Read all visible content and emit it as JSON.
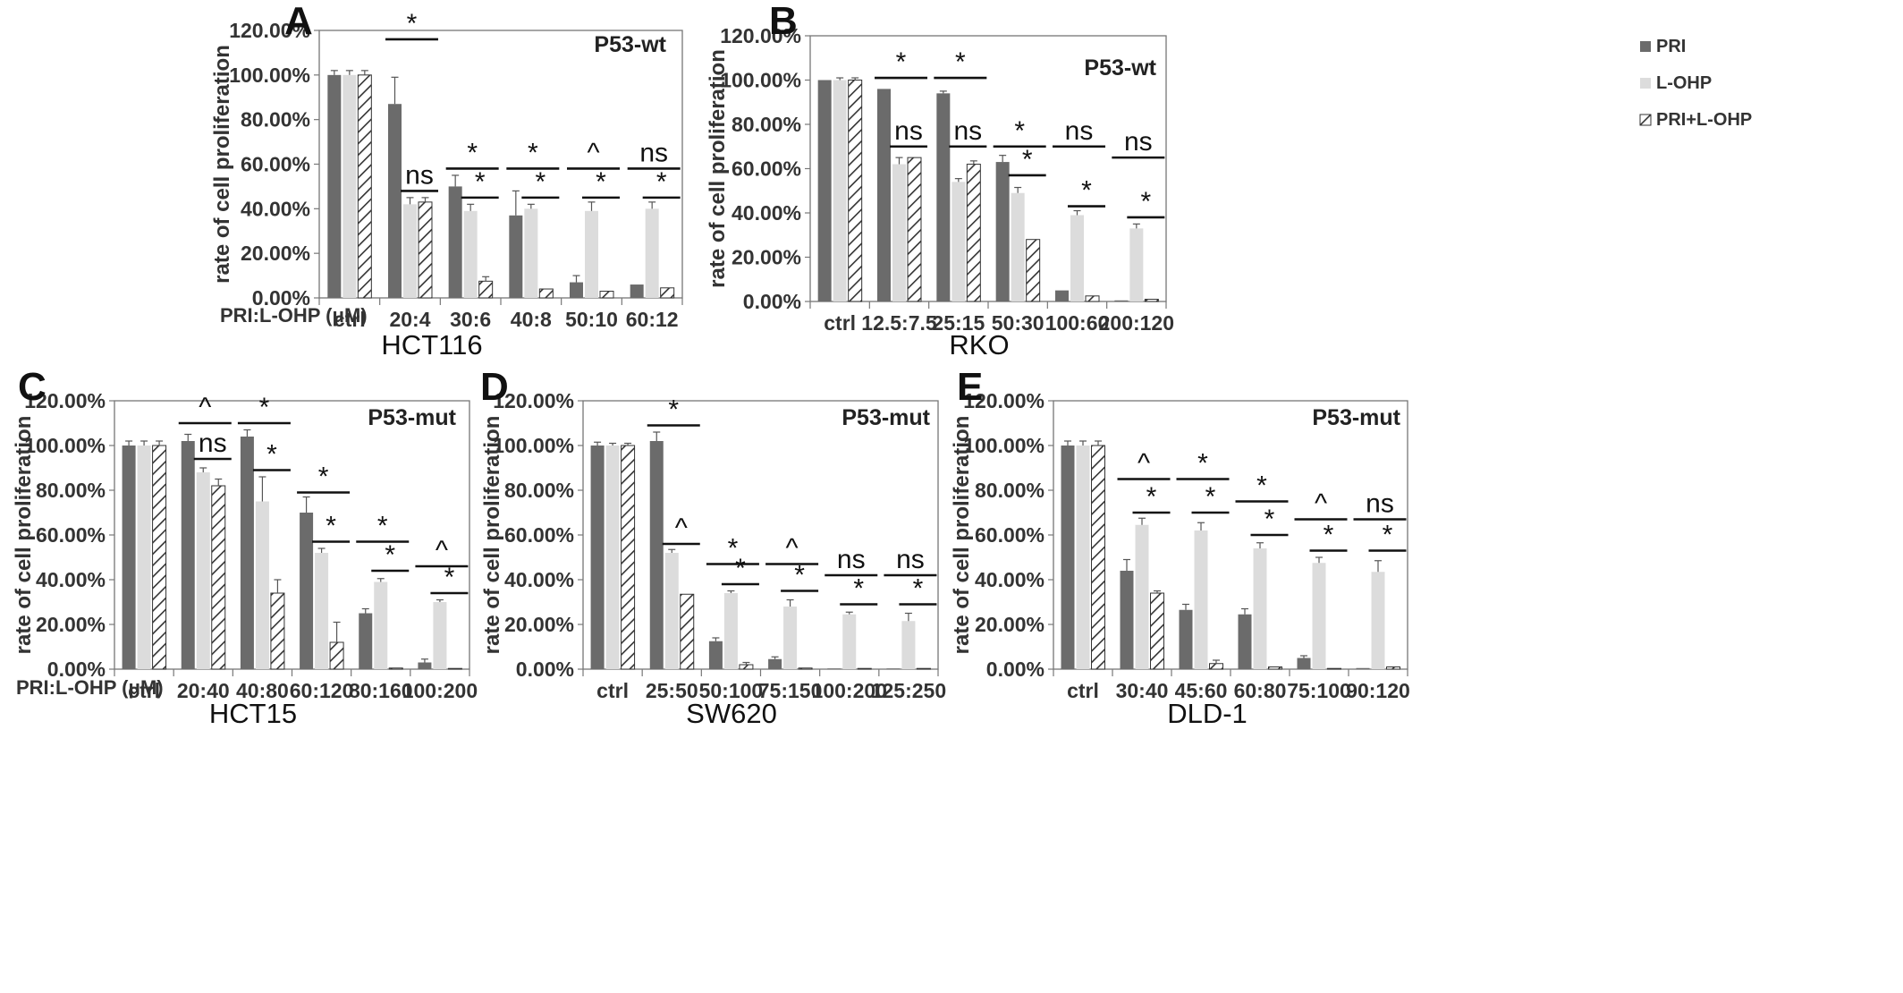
{
  "colors": {
    "pri": "#6b6b6b",
    "lohp": "#dcdcdc",
    "combo_hatch": "#333333",
    "axis": "#777777",
    "text": "#333333"
  },
  "legend": {
    "entries": [
      {
        "label": "PRI",
        "pattern": "solid-dark"
      },
      {
        "label": "L-OHP",
        "pattern": "solid-light"
      },
      {
        "label": "PRI+L-OHP",
        "pattern": "hatched"
      }
    ]
  },
  "chart_data": [
    {
      "panel": "A",
      "cell_line": "HCT116",
      "p53": "P53-wt",
      "type": "bar",
      "ylabel": "rate of cell proliferation",
      "ratio_label": "PRI:L-OHP (μM)",
      "yticks": [
        "0.00%",
        "20.00%",
        "40.00%",
        "60.00%",
        "80.00%",
        "100.00%",
        "120.00%"
      ],
      "ylim": [
        0,
        120
      ],
      "categories": [
        "ctrl",
        "20:4",
        "30:6",
        "40:8",
        "50:10",
        "60:12"
      ],
      "series": [
        {
          "name": "PRI",
          "values": [
            100,
            87,
            50,
            37,
            7,
            6
          ],
          "errors": [
            2,
            12,
            5,
            11,
            3,
            0
          ]
        },
        {
          "name": "L-OHP",
          "values": [
            100,
            42,
            39,
            40,
            39,
            40
          ],
          "errors": [
            2,
            3,
            3,
            2,
            4,
            3
          ]
        },
        {
          "name": "PRI+L-OHP",
          "values": [
            100,
            43,
            7.5,
            4,
            3,
            4.5
          ],
          "errors": [
            2,
            2,
            2,
            0.5,
            0.5,
            0.5
          ]
        }
      ],
      "annotations": [
        {
          "cat": 1,
          "from": 0,
          "to": 2,
          "label": "*",
          "level": 116
        },
        {
          "cat": 1,
          "from": 1,
          "to": 2,
          "label": "ns",
          "level": 48
        },
        {
          "cat": 2,
          "from": 0,
          "to": 2,
          "label": "*",
          "level": 58
        },
        {
          "cat": 2,
          "from": 1,
          "to": 2,
          "label": "*",
          "level": 45
        },
        {
          "cat": 3,
          "from": 0,
          "to": 2,
          "label": "*",
          "level": 58
        },
        {
          "cat": 3,
          "from": 1,
          "to": 2,
          "label": "*",
          "level": 45
        },
        {
          "cat": 4,
          "from": 0,
          "to": 2,
          "label": "^",
          "level": 58
        },
        {
          "cat": 4,
          "from": 1,
          "to": 2,
          "label": "*",
          "level": 45
        },
        {
          "cat": 5,
          "from": 0,
          "to": 2,
          "label": "ns",
          "level": 58
        },
        {
          "cat": 5,
          "from": 1,
          "to": 2,
          "label": "*",
          "level": 45
        }
      ]
    },
    {
      "panel": "B",
      "cell_line": "RKO",
      "p53": "P53-wt",
      "type": "bar",
      "ylabel": "rate of cell proliferation",
      "ratio_label": "",
      "yticks": [
        "0.00%",
        "20.00%",
        "40.00%",
        "60.00%",
        "80.00%",
        "100.00%",
        "120.00%"
      ],
      "ylim": [
        0,
        120
      ],
      "categories": [
        "ctrl",
        "12.5:7.5",
        "25:15",
        "50:30",
        "100:60",
        "200:120"
      ],
      "series": [
        {
          "name": "PRI",
          "values": [
            100,
            96,
            94,
            63,
            5,
            0.5
          ],
          "errors": [
            0.5,
            0.5,
            1,
            3,
            0.5,
            0.5
          ]
        },
        {
          "name": "L-OHP",
          "values": [
            100,
            62,
            54,
            49,
            39,
            33
          ],
          "errors": [
            1,
            3,
            1.5,
            2.5,
            2,
            2
          ]
        },
        {
          "name": "PRI+L-OHP",
          "values": [
            100,
            65,
            62,
            28,
            2.5,
            1
          ],
          "errors": [
            1,
            0.5,
            1.5,
            0.5,
            0.3,
            0.3
          ]
        }
      ],
      "annotations": [
        {
          "cat": 1,
          "from": 0,
          "to": 2,
          "label": "*",
          "level": 101
        },
        {
          "cat": 1,
          "from": 1,
          "to": 2,
          "label": "ns",
          "level": 70
        },
        {
          "cat": 2,
          "from": 0,
          "to": 2,
          "label": "*",
          "level": 101
        },
        {
          "cat": 2,
          "from": 1,
          "to": 2,
          "label": "ns",
          "level": 70
        },
        {
          "cat": 3,
          "from": 0,
          "to": 2,
          "label": "*",
          "level": 70
        },
        {
          "cat": 3,
          "from": 1,
          "to": 2,
          "label": "*",
          "level": 57
        },
        {
          "cat": 4,
          "from": 0,
          "to": 2,
          "label": "ns",
          "level": 70
        },
        {
          "cat": 4,
          "from": 1,
          "to": 2,
          "label": "*",
          "level": 43
        },
        {
          "cat": 5,
          "from": 0,
          "to": 2,
          "label": "ns",
          "level": 65
        },
        {
          "cat": 5,
          "from": 1,
          "to": 2,
          "label": "*",
          "level": 38
        }
      ]
    },
    {
      "panel": "C",
      "cell_line": "HCT15",
      "p53": "P53-mut",
      "type": "bar",
      "ylabel": "rate of cell proliferation",
      "ratio_label": "PRI:L-OHP (μM)",
      "yticks": [
        "0.00%",
        "20.00%",
        "40.00%",
        "60.00%",
        "80.00%",
        "100.00%",
        "120.00%"
      ],
      "ylim": [
        0,
        120
      ],
      "categories": [
        "ctrl",
        "20:40",
        "40:80",
        "60:120",
        "80:160",
        "100:200"
      ],
      "series": [
        {
          "name": "PRI",
          "values": [
            100,
            102,
            104,
            70,
            25,
            3
          ],
          "errors": [
            2,
            3,
            3,
            7,
            2,
            1.5
          ]
        },
        {
          "name": "L-OHP",
          "values": [
            100,
            88,
            75,
            52,
            39,
            30
          ],
          "errors": [
            2,
            2,
            11,
            2,
            1.5,
            1
          ]
        },
        {
          "name": "PRI+L-OHP",
          "values": [
            100,
            82,
            34,
            12,
            0.5,
            0
          ],
          "errors": [
            2,
            3,
            6,
            9,
            0.3,
            0
          ]
        }
      ],
      "annotations": [
        {
          "cat": 1,
          "from": 0,
          "to": 2,
          "label": "^",
          "level": 110
        },
        {
          "cat": 1,
          "from": 1,
          "to": 2,
          "label": "ns",
          "level": 94
        },
        {
          "cat": 2,
          "from": 0,
          "to": 2,
          "label": "*",
          "level": 110
        },
        {
          "cat": 2,
          "from": 1,
          "to": 2,
          "label": "*",
          "level": 89
        },
        {
          "cat": 3,
          "from": 0,
          "to": 2,
          "label": "*",
          "level": 79
        },
        {
          "cat": 3,
          "from": 1,
          "to": 2,
          "label": "*",
          "level": 57
        },
        {
          "cat": 4,
          "from": 0,
          "to": 2,
          "label": "*",
          "level": 57
        },
        {
          "cat": 4,
          "from": 1,
          "to": 2,
          "label": "*",
          "level": 44
        },
        {
          "cat": 5,
          "from": 0,
          "to": 2,
          "label": "^",
          "level": 46
        },
        {
          "cat": 5,
          "from": 1,
          "to": 2,
          "label": "*",
          "level": 34
        }
      ]
    },
    {
      "panel": "D",
      "cell_line": "SW620",
      "p53": "P53-mut",
      "type": "bar",
      "ylabel": "rate of cell proliferation",
      "ratio_label": "",
      "yticks": [
        "0.00%",
        "20.00%",
        "40.00%",
        "60.00%",
        "80.00%",
        "100.00%",
        "120.00%"
      ],
      "ylim": [
        0,
        120
      ],
      "categories": [
        "ctrl",
        "25:50",
        "50:100",
        "75:150",
        "100:200",
        "125:250"
      ],
      "series": [
        {
          "name": "PRI",
          "values": [
            100,
            102,
            12.5,
            4.5,
            0.3,
            0.2
          ],
          "errors": [
            1.5,
            4,
            1.5,
            1,
            0.2,
            0.2
          ]
        },
        {
          "name": "L-OHP",
          "values": [
            100,
            52,
            34,
            28,
            24.5,
            21.5
          ],
          "errors": [
            1,
            1.5,
            1,
            3,
            1,
            3.5
          ]
        },
        {
          "name": "PRI+L-OHP",
          "values": [
            100,
            33.5,
            2,
            0.5,
            0.3,
            0.3
          ],
          "errors": [
            1,
            0.5,
            1,
            0.3,
            0.2,
            0.2
          ]
        }
      ],
      "annotations": [
        {
          "cat": 1,
          "from": 0,
          "to": 2,
          "label": "*",
          "level": 109
        },
        {
          "cat": 1,
          "from": 1,
          "to": 2,
          "label": "^",
          "level": 56
        },
        {
          "cat": 2,
          "from": 0,
          "to": 2,
          "label": "*",
          "level": 47
        },
        {
          "cat": 2,
          "from": 1,
          "to": 2,
          "label": "*",
          "level": 38
        },
        {
          "cat": 3,
          "from": 0,
          "to": 2,
          "label": "^",
          "level": 47
        },
        {
          "cat": 3,
          "from": 1,
          "to": 2,
          "label": "*",
          "level": 35
        },
        {
          "cat": 4,
          "from": 0,
          "to": 2,
          "label": "ns",
          "level": 42
        },
        {
          "cat": 4,
          "from": 1,
          "to": 2,
          "label": "*",
          "level": 29
        },
        {
          "cat": 5,
          "from": 0,
          "to": 2,
          "label": "ns",
          "level": 42
        },
        {
          "cat": 5,
          "from": 1,
          "to": 2,
          "label": "*",
          "level": 29
        }
      ]
    },
    {
      "panel": "E",
      "cell_line": "DLD-1",
      "p53": "P53-mut",
      "type": "bar",
      "ylabel": "rate of cell proliferation",
      "ratio_label": "",
      "yticks": [
        "0.00%",
        "20.00%",
        "40.00%",
        "60.00%",
        "80.00%",
        "100.00%",
        "120.00%"
      ],
      "ylim": [
        0,
        120
      ],
      "categories": [
        "ctrl",
        "30:40",
        "45:60",
        "60:80",
        "75:100",
        "90:120"
      ],
      "series": [
        {
          "name": "PRI",
          "values": [
            100,
            44,
            26.5,
            24.5,
            5,
            0.5
          ],
          "errors": [
            2,
            5,
            2.5,
            2.5,
            1,
            0.5
          ]
        },
        {
          "name": "L-OHP",
          "values": [
            100,
            64.5,
            62,
            54,
            47.5,
            43.5
          ],
          "errors": [
            2,
            3,
            3.5,
            2.5,
            2.5,
            5
          ]
        },
        {
          "name": "PRI+L-OHP",
          "values": [
            100,
            34,
            2.5,
            1,
            0.3,
            1
          ],
          "errors": [
            2,
            1,
            1.5,
            0.5,
            0.3,
            0.5
          ]
        }
      ],
      "annotations": [
        {
          "cat": 1,
          "from": 0,
          "to": 2,
          "label": "^",
          "level": 85
        },
        {
          "cat": 1,
          "from": 1,
          "to": 2,
          "label": "*",
          "level": 70
        },
        {
          "cat": 2,
          "from": 0,
          "to": 2,
          "label": "*",
          "level": 85
        },
        {
          "cat": 2,
          "from": 1,
          "to": 2,
          "label": "*",
          "level": 70
        },
        {
          "cat": 3,
          "from": 0,
          "to": 2,
          "label": "*",
          "level": 75
        },
        {
          "cat": 3,
          "from": 1,
          "to": 2,
          "label": "*",
          "level": 60
        },
        {
          "cat": 4,
          "from": 0,
          "to": 2,
          "label": "^",
          "level": 67
        },
        {
          "cat": 4,
          "from": 1,
          "to": 2,
          "label": "*",
          "level": 53
        },
        {
          "cat": 5,
          "from": 0,
          "to": 2,
          "label": "ns",
          "level": 67
        },
        {
          "cat": 5,
          "from": 1,
          "to": 2,
          "label": "*",
          "level": 53
        }
      ]
    }
  ]
}
